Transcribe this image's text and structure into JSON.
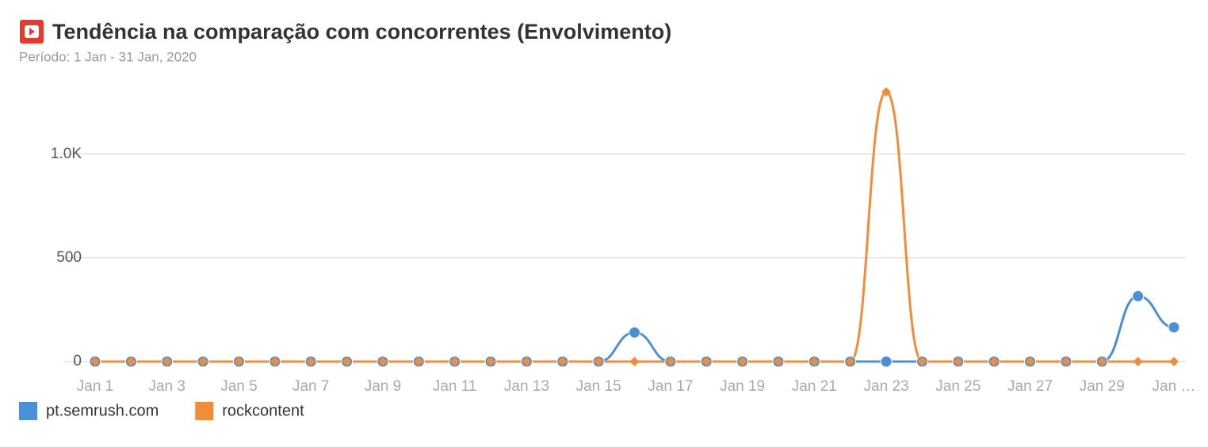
{
  "chart_data": {
    "type": "line",
    "title": "Tendência na comparação com concorrentes (Envolvimento)",
    "subtitle": "Período: 1 Jan - 31 Jan, 2020",
    "categories": [
      "Jan 1",
      null,
      "Jan 3",
      null,
      "Jan 5",
      null,
      "Jan 7",
      null,
      "Jan 9",
      null,
      "Jan 11",
      null,
      "Jan 13",
      null,
      "Jan 15",
      null,
      "Jan 17",
      null,
      "Jan 19",
      null,
      "Jan 21",
      null,
      "Jan 23",
      null,
      "Jan 25",
      null,
      "Jan 27",
      null,
      "Jan 29",
      null,
      "Jan …"
    ],
    "series": [
      {
        "name": "pt.semrush.com",
        "color": "#4a90d9",
        "marker": "circle",
        "values": [
          0,
          0,
          0,
          0,
          0,
          0,
          0,
          0,
          0,
          0,
          0,
          0,
          0,
          0,
          0,
          140,
          0,
          0,
          0,
          0,
          0,
          0,
          0,
          0,
          0,
          0,
          0,
          0,
          0,
          315,
          165
        ]
      },
      {
        "name": "rockcontent",
        "color": "#f28c38",
        "marker": "diamond",
        "values": [
          0,
          0,
          0,
          0,
          0,
          0,
          0,
          0,
          0,
          0,
          0,
          0,
          0,
          0,
          0,
          0,
          0,
          0,
          0,
          0,
          0,
          0,
          1300,
          0,
          0,
          0,
          0,
          0,
          0,
          0,
          0
        ]
      }
    ],
    "ylim": [
      0,
      1350
    ],
    "yticks": [
      0,
      500,
      {
        "value": 1000,
        "label": "1.0K"
      }
    ],
    "grid": true
  }
}
